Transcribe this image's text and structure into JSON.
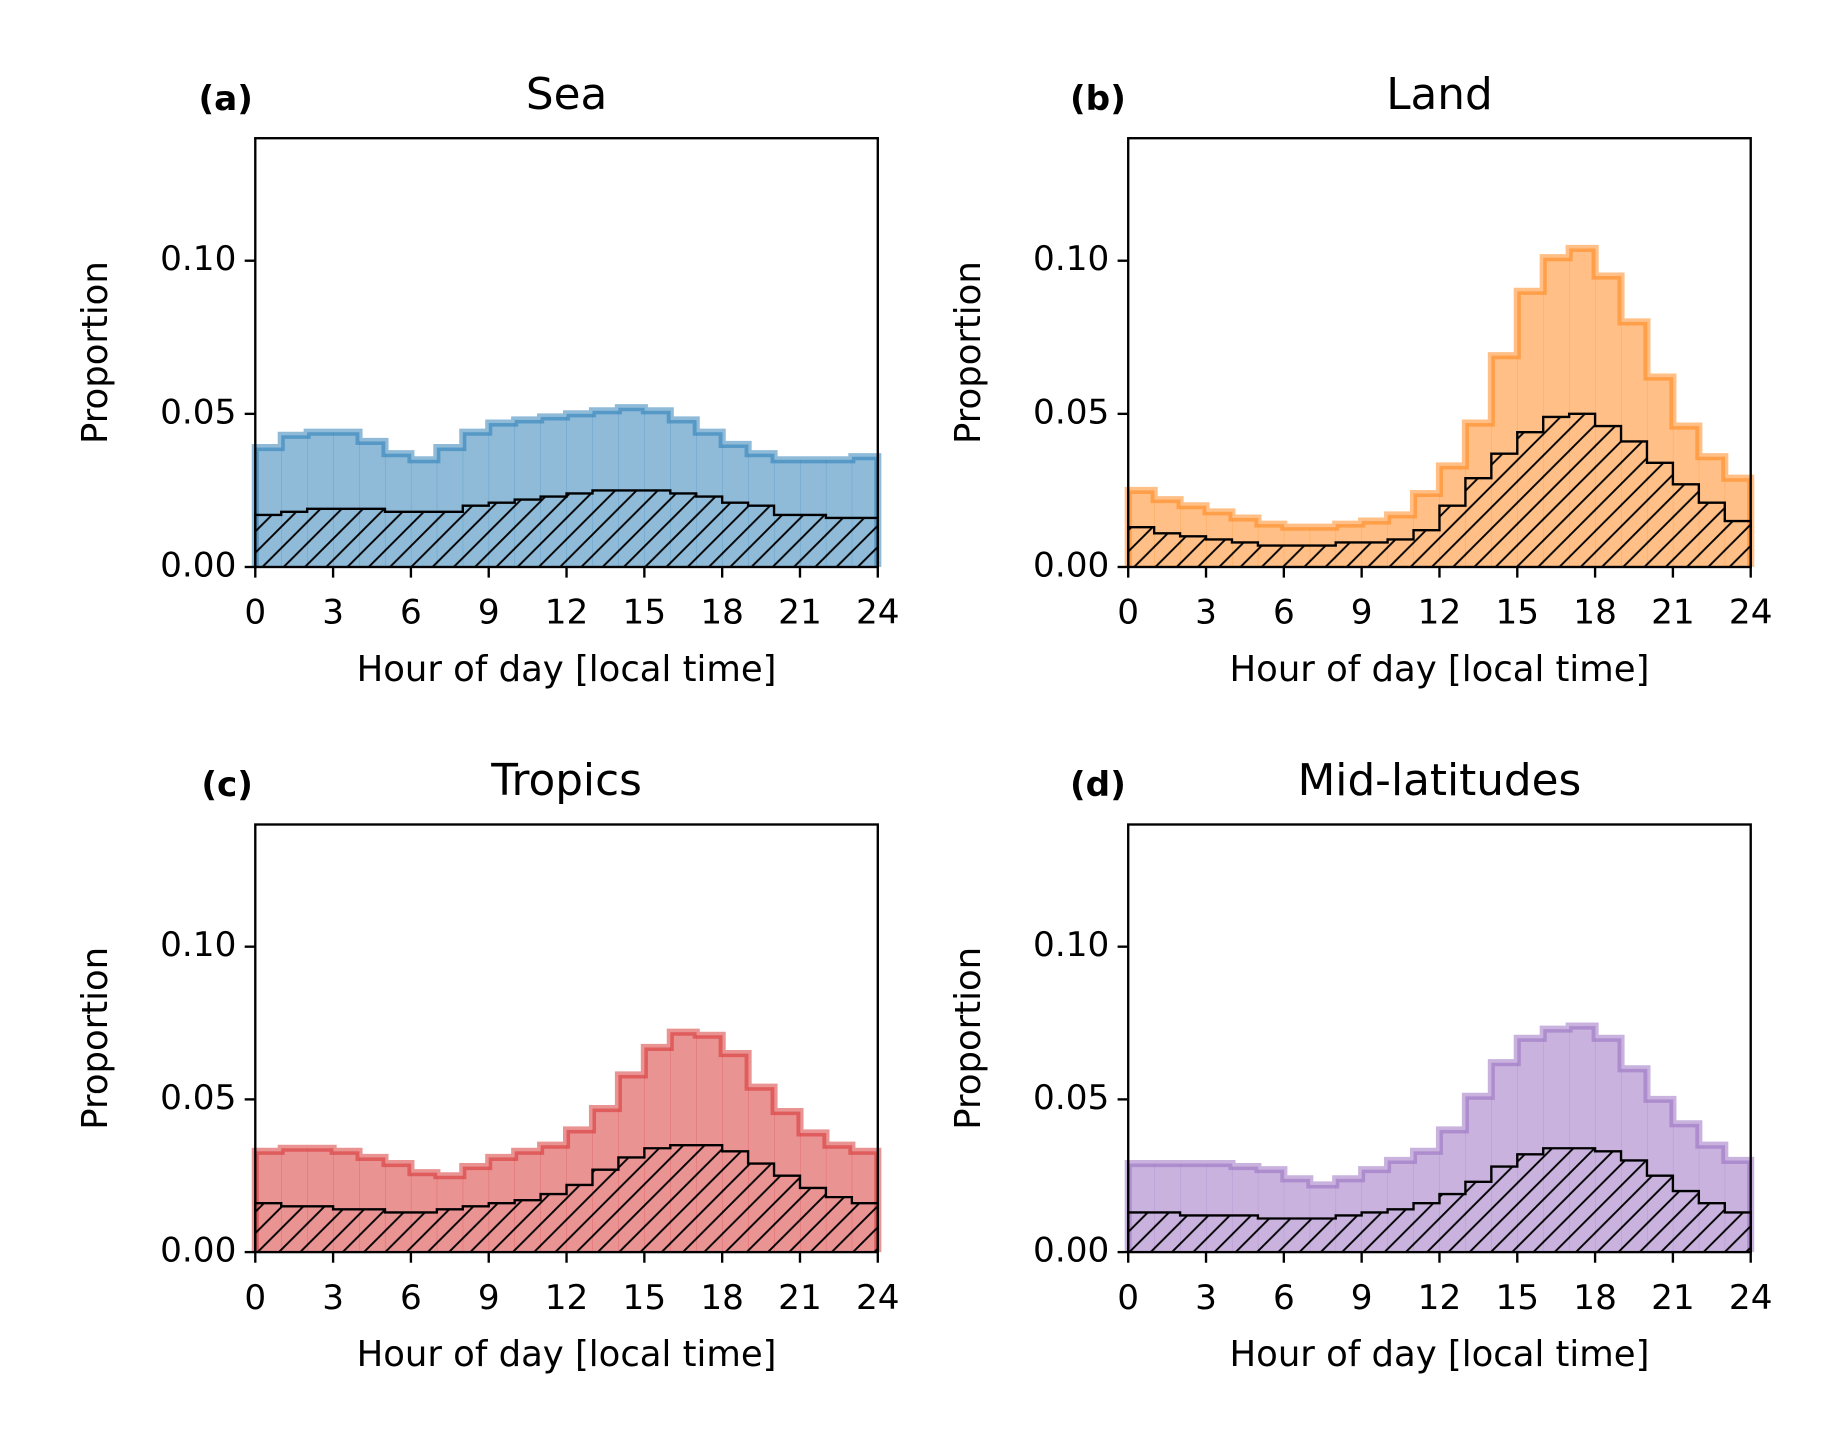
{
  "chart_data": [
    {
      "type": "histogram",
      "panel_label": "(a)",
      "title": "Sea",
      "xlabel": "Hour of day [local time]",
      "ylabel": "Proportion",
      "bins": [
        0,
        1,
        2,
        3,
        4,
        5,
        6,
        7,
        8,
        9,
        10,
        11,
        12,
        13,
        14,
        15,
        16,
        17,
        18,
        19,
        20,
        21,
        22,
        23,
        24
      ],
      "xlim": [
        0,
        24
      ],
      "xticks": [
        0,
        3,
        6,
        9,
        12,
        15,
        18,
        21,
        24
      ],
      "ylim": [
        0,
        0.14
      ],
      "yticks": [
        {
          "value": 0,
          "label": "0.00"
        },
        {
          "value": 0.05,
          "label": "0.05"
        },
        {
          "value": 0.1,
          "label": "0.10"
        }
      ],
      "series": [
        {
          "color": "#1f77b4",
          "values": [
            0.039,
            0.043,
            0.044,
            0.044,
            0.041,
            0.037,
            0.035,
            0.039,
            0.044,
            0.047,
            0.048,
            0.049,
            0.05,
            0.051,
            0.052,
            0.051,
            0.048,
            0.044,
            0.04,
            0.037,
            0.035,
            0.035,
            0.035,
            0.036
          ]
        },
        {
          "color": "#000000",
          "hatch": "/",
          "values": [
            0.017,
            0.018,
            0.019,
            0.019,
            0.019,
            0.018,
            0.018,
            0.018,
            0.02,
            0.021,
            0.022,
            0.023,
            0.024,
            0.025,
            0.025,
            0.025,
            0.024,
            0.023,
            0.021,
            0.02,
            0.017,
            0.017,
            0.016,
            0.016
          ]
        }
      ]
    },
    {
      "type": "histogram",
      "panel_label": "(b)",
      "title": "Land",
      "xlabel": "Hour of day [local time]",
      "ylabel": "Proportion",
      "bins": [
        0,
        1,
        2,
        3,
        4,
        5,
        6,
        7,
        8,
        9,
        10,
        11,
        12,
        13,
        14,
        15,
        16,
        17,
        18,
        19,
        20,
        21,
        22,
        23,
        24
      ],
      "xlim": [
        0,
        24
      ],
      "xticks": [
        0,
        3,
        6,
        9,
        12,
        15,
        18,
        21,
        24
      ],
      "ylim": [
        0,
        0.14
      ],
      "yticks": [
        {
          "value": 0,
          "label": "0.00"
        },
        {
          "value": 0.05,
          "label": "0.05"
        },
        {
          "value": 0.1,
          "label": "0.10"
        }
      ],
      "series": [
        {
          "color": "#ff7f0e",
          "values": [
            0.025,
            0.022,
            0.02,
            0.018,
            0.016,
            0.014,
            0.013,
            0.013,
            0.014,
            0.015,
            0.017,
            0.024,
            0.033,
            0.047,
            0.069,
            0.09,
            0.101,
            0.104,
            0.095,
            0.08,
            0.062,
            0.046,
            0.036,
            0.029
          ]
        },
        {
          "color": "#000000",
          "hatch": "/",
          "values": [
            0.013,
            0.011,
            0.01,
            0.009,
            0.008,
            0.007,
            0.007,
            0.007,
            0.008,
            0.008,
            0.009,
            0.012,
            0.02,
            0.029,
            0.037,
            0.044,
            0.049,
            0.05,
            0.046,
            0.041,
            0.034,
            0.027,
            0.021,
            0.015
          ]
        }
      ]
    },
    {
      "type": "histogram",
      "panel_label": "(c)",
      "title": "Tropics",
      "xlabel": "Hour of day [local time]",
      "ylabel": "Proportion",
      "bins": [
        0,
        1,
        2,
        3,
        4,
        5,
        6,
        7,
        8,
        9,
        10,
        11,
        12,
        13,
        14,
        15,
        16,
        17,
        18,
        19,
        20,
        21,
        22,
        23,
        24
      ],
      "xlim": [
        0,
        24
      ],
      "xticks": [
        0,
        3,
        6,
        9,
        12,
        15,
        18,
        21,
        24
      ],
      "ylim": [
        0,
        0.14
      ],
      "yticks": [
        {
          "value": 0,
          "label": "0.00"
        },
        {
          "value": 0.05,
          "label": "0.05"
        },
        {
          "value": 0.1,
          "label": "0.10"
        }
      ],
      "series": [
        {
          "color": "#d62728",
          "values": [
            0.033,
            0.034,
            0.034,
            0.033,
            0.031,
            0.029,
            0.026,
            0.025,
            0.028,
            0.031,
            0.033,
            0.035,
            0.04,
            0.047,
            0.058,
            0.067,
            0.072,
            0.071,
            0.065,
            0.054,
            0.046,
            0.039,
            0.035,
            0.033
          ]
        },
        {
          "color": "#000000",
          "hatch": "/",
          "values": [
            0.016,
            0.015,
            0.015,
            0.014,
            0.014,
            0.013,
            0.013,
            0.014,
            0.015,
            0.016,
            0.017,
            0.019,
            0.022,
            0.027,
            0.031,
            0.034,
            0.035,
            0.035,
            0.033,
            0.029,
            0.025,
            0.021,
            0.018,
            0.016
          ]
        }
      ]
    },
    {
      "type": "histogram",
      "panel_label": "(d)",
      "title": "Mid-latitudes",
      "xlabel": "Hour of day [local time]",
      "ylabel": "Proportion",
      "bins": [
        0,
        1,
        2,
        3,
        4,
        5,
        6,
        7,
        8,
        9,
        10,
        11,
        12,
        13,
        14,
        15,
        16,
        17,
        18,
        19,
        20,
        21,
        22,
        23,
        24
      ],
      "xlim": [
        0,
        24
      ],
      "xticks": [
        0,
        3,
        6,
        9,
        12,
        15,
        18,
        21,
        24
      ],
      "ylim": [
        0,
        0.14
      ],
      "yticks": [
        {
          "value": 0,
          "label": "0.00"
        },
        {
          "value": 0.05,
          "label": "0.05"
        },
        {
          "value": 0.1,
          "label": "0.10"
        }
      ],
      "series": [
        {
          "color": "#9467bd",
          "values": [
            0.029,
            0.029,
            0.029,
            0.029,
            0.028,
            0.027,
            0.024,
            0.022,
            0.024,
            0.027,
            0.03,
            0.033,
            0.04,
            0.051,
            0.062,
            0.07,
            0.073,
            0.074,
            0.07,
            0.06,
            0.05,
            0.042,
            0.035,
            0.03
          ]
        },
        {
          "color": "#000000",
          "hatch": "/",
          "values": [
            0.013,
            0.013,
            0.012,
            0.012,
            0.012,
            0.011,
            0.011,
            0.011,
            0.012,
            0.013,
            0.014,
            0.016,
            0.019,
            0.023,
            0.028,
            0.032,
            0.034,
            0.034,
            0.033,
            0.03,
            0.025,
            0.02,
            0.016,
            0.013
          ]
        }
      ]
    }
  ]
}
